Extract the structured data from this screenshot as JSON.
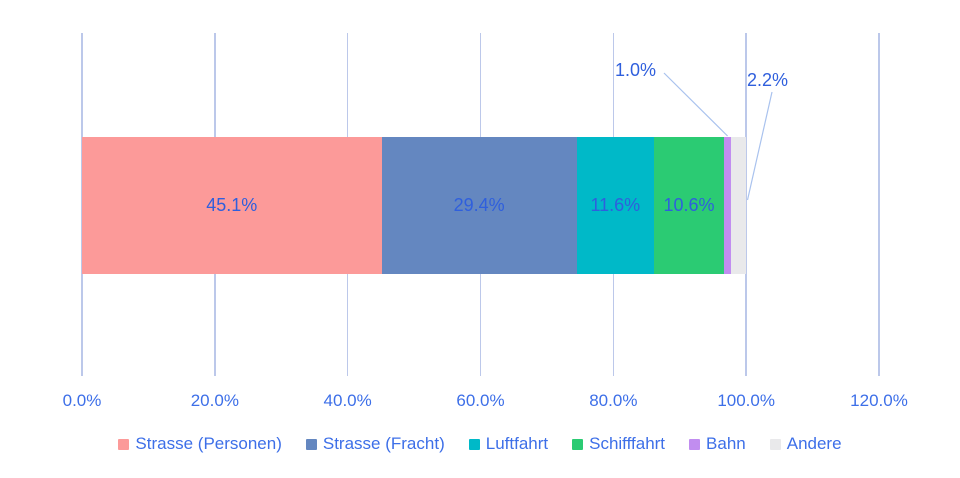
{
  "chart_data": {
    "type": "bar",
    "orientation": "horizontal",
    "stacked": true,
    "title": "",
    "xlabel": "",
    "ylabel": "",
    "xlim": [
      0,
      120
    ],
    "x_ticks": [
      "0.0%",
      "20.0%",
      "40.0%",
      "60.0%",
      "80.0%",
      "100.0%",
      "120.0%"
    ],
    "grid": "vertical",
    "legend_position": "bottom",
    "series": [
      {
        "name": "Strasse (Personen)",
        "value": 45.1,
        "label": "45.1%",
        "color": "#fc9a99",
        "label_placement": "inside"
      },
      {
        "name": "Strasse (Fracht)",
        "value": 29.4,
        "label": "29.4%",
        "color": "#6487c0",
        "label_placement": "inside"
      },
      {
        "name": "Luftfahrt",
        "value": 11.6,
        "label": "11.6%",
        "color": "#00b9c8",
        "label_placement": "inside"
      },
      {
        "name": "Schifffahrt",
        "value": 10.6,
        "label": "10.6%",
        "color": "#2bcb73",
        "label_placement": "inside"
      },
      {
        "name": "Bahn",
        "value": 1.0,
        "label": "1.0%",
        "color": "#c18df0",
        "label_placement": "callout"
      },
      {
        "name": "Andere",
        "value": 2.2,
        "label": "2.2%",
        "color": "#e9e9eb",
        "label_placement": "callout"
      }
    ],
    "colors": {
      "label_text": "#2f5fdd",
      "axis_text": "#3d6fe8",
      "gridline": "#bcc8ea",
      "leader_line": "#a9c2ee",
      "background": "#ffffff"
    }
  }
}
